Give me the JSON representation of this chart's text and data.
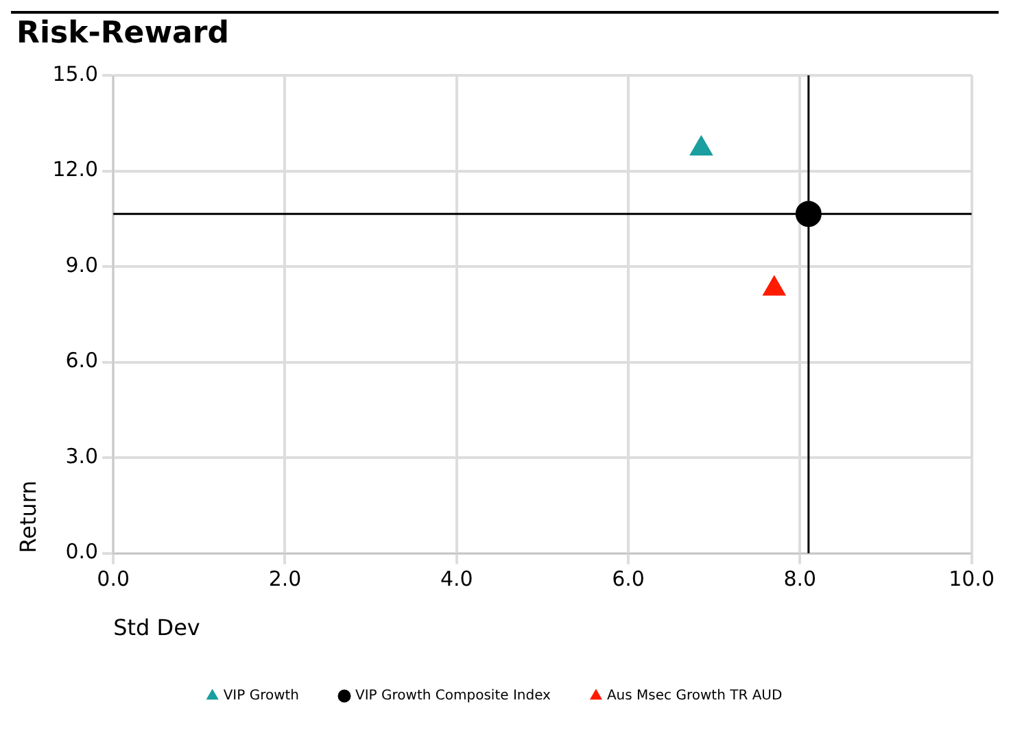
{
  "chart_data": {
    "type": "scatter",
    "title": "Risk-Reward",
    "xlabel": "Std Dev",
    "ylabel": "Return",
    "xlim": [
      0,
      10
    ],
    "xticks": [
      {
        "value": 0,
        "label": "0.0"
      },
      {
        "value": 2,
        "label": "2.0"
      },
      {
        "value": 4,
        "label": "4.0"
      },
      {
        "value": 6,
        "label": "6.0"
      },
      {
        "value": 8,
        "label": "8.0"
      },
      {
        "value": 10,
        "label": "10.0"
      }
    ],
    "ylim": [
      0,
      15
    ],
    "yticks": [
      {
        "value": 0,
        "label": "0.0"
      },
      {
        "value": 3,
        "label": "3.0"
      },
      {
        "value": 6,
        "label": "6.0"
      },
      {
        "value": 9,
        "label": "9.0"
      },
      {
        "value": 12,
        "label": "12.0"
      },
      {
        "value": 15,
        "label": "15.0"
      }
    ],
    "grid": true,
    "legend": "bottom",
    "series": [
      {
        "name": "VIP Growth",
        "color": "#1a9ea0",
        "marker": "triangle",
        "x": [
          6.85
        ],
        "values": [
          12.7
        ]
      },
      {
        "name": "VIP Growth Composite Index",
        "color": "#000000",
        "marker": "circle",
        "x": [
          8.1
        ],
        "values": [
          10.65
        ]
      },
      {
        "name": "Aus Msec Growth TR AUD",
        "color": "#ff1a00",
        "marker": "triangle",
        "x": [
          7.7
        ],
        "values": [
          8.3
        ]
      }
    ],
    "ref_lines": [
      {
        "axis": "x",
        "value": 8.1,
        "color": "#000000"
      },
      {
        "axis": "y",
        "value": 10.65,
        "color": "#000000"
      }
    ]
  }
}
